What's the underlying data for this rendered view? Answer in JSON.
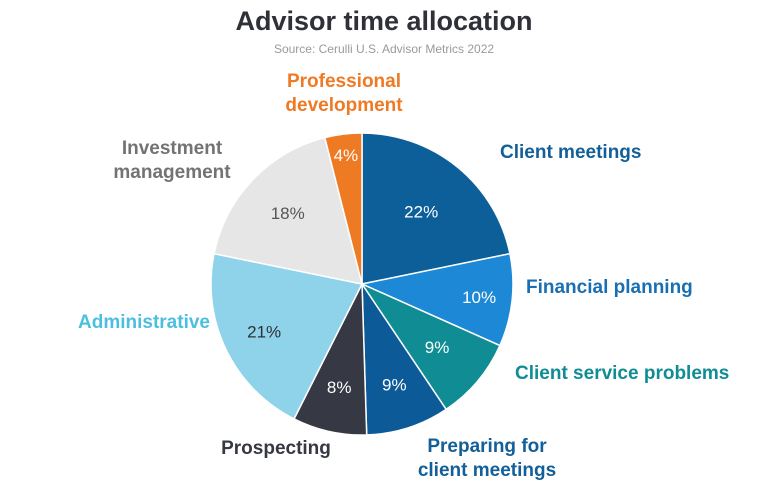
{
  "chart_data": {
    "type": "pie",
    "title": "Advisor time allocation",
    "subtitle": "Source: Cerulli U.S. Advisor Metrics 2022",
    "slices": [
      {
        "label": "Client meetings",
        "value": 22,
        "value_label": "22%",
        "color": "#0d5f9a",
        "label_color": "#135f99",
        "text_color": "#ffffff"
      },
      {
        "label": "Financial planning",
        "value": 10,
        "value_label": "10%",
        "color": "#1c88d6",
        "label_color": "#1a6fb3",
        "text_color": "#ffffff"
      },
      {
        "label": "Client service problems",
        "value": 9,
        "value_label": "9%",
        "color": "#108d94",
        "label_color": "#108d94",
        "text_color": "#ffffff"
      },
      {
        "label": "Preparing for client meetings",
        "value": 9,
        "value_label": "9%",
        "color": "#0c5a98",
        "label_color": "#135f99",
        "text_color": "#ffffff"
      },
      {
        "label": "Prospecting",
        "value": 8,
        "value_label": "8%",
        "color": "#363843",
        "label_color": "#363843",
        "text_color": "#ffffff"
      },
      {
        "label": "Administrative",
        "value": 21,
        "value_label": "21%",
        "color": "#8ed3ea",
        "label_color": "#4cbfe1",
        "text_color": "#2f3038"
      },
      {
        "label": "Investment management",
        "value": 18,
        "value_label": "18%",
        "color": "#e6e6e6",
        "label_color": "#737373",
        "text_color": "#555555"
      },
      {
        "label": "Professional development",
        "value": 4,
        "value_label": "4%",
        "color": "#ef7a24",
        "label_color": "#ef7a24",
        "text_color": "#ffffff"
      }
    ]
  }
}
